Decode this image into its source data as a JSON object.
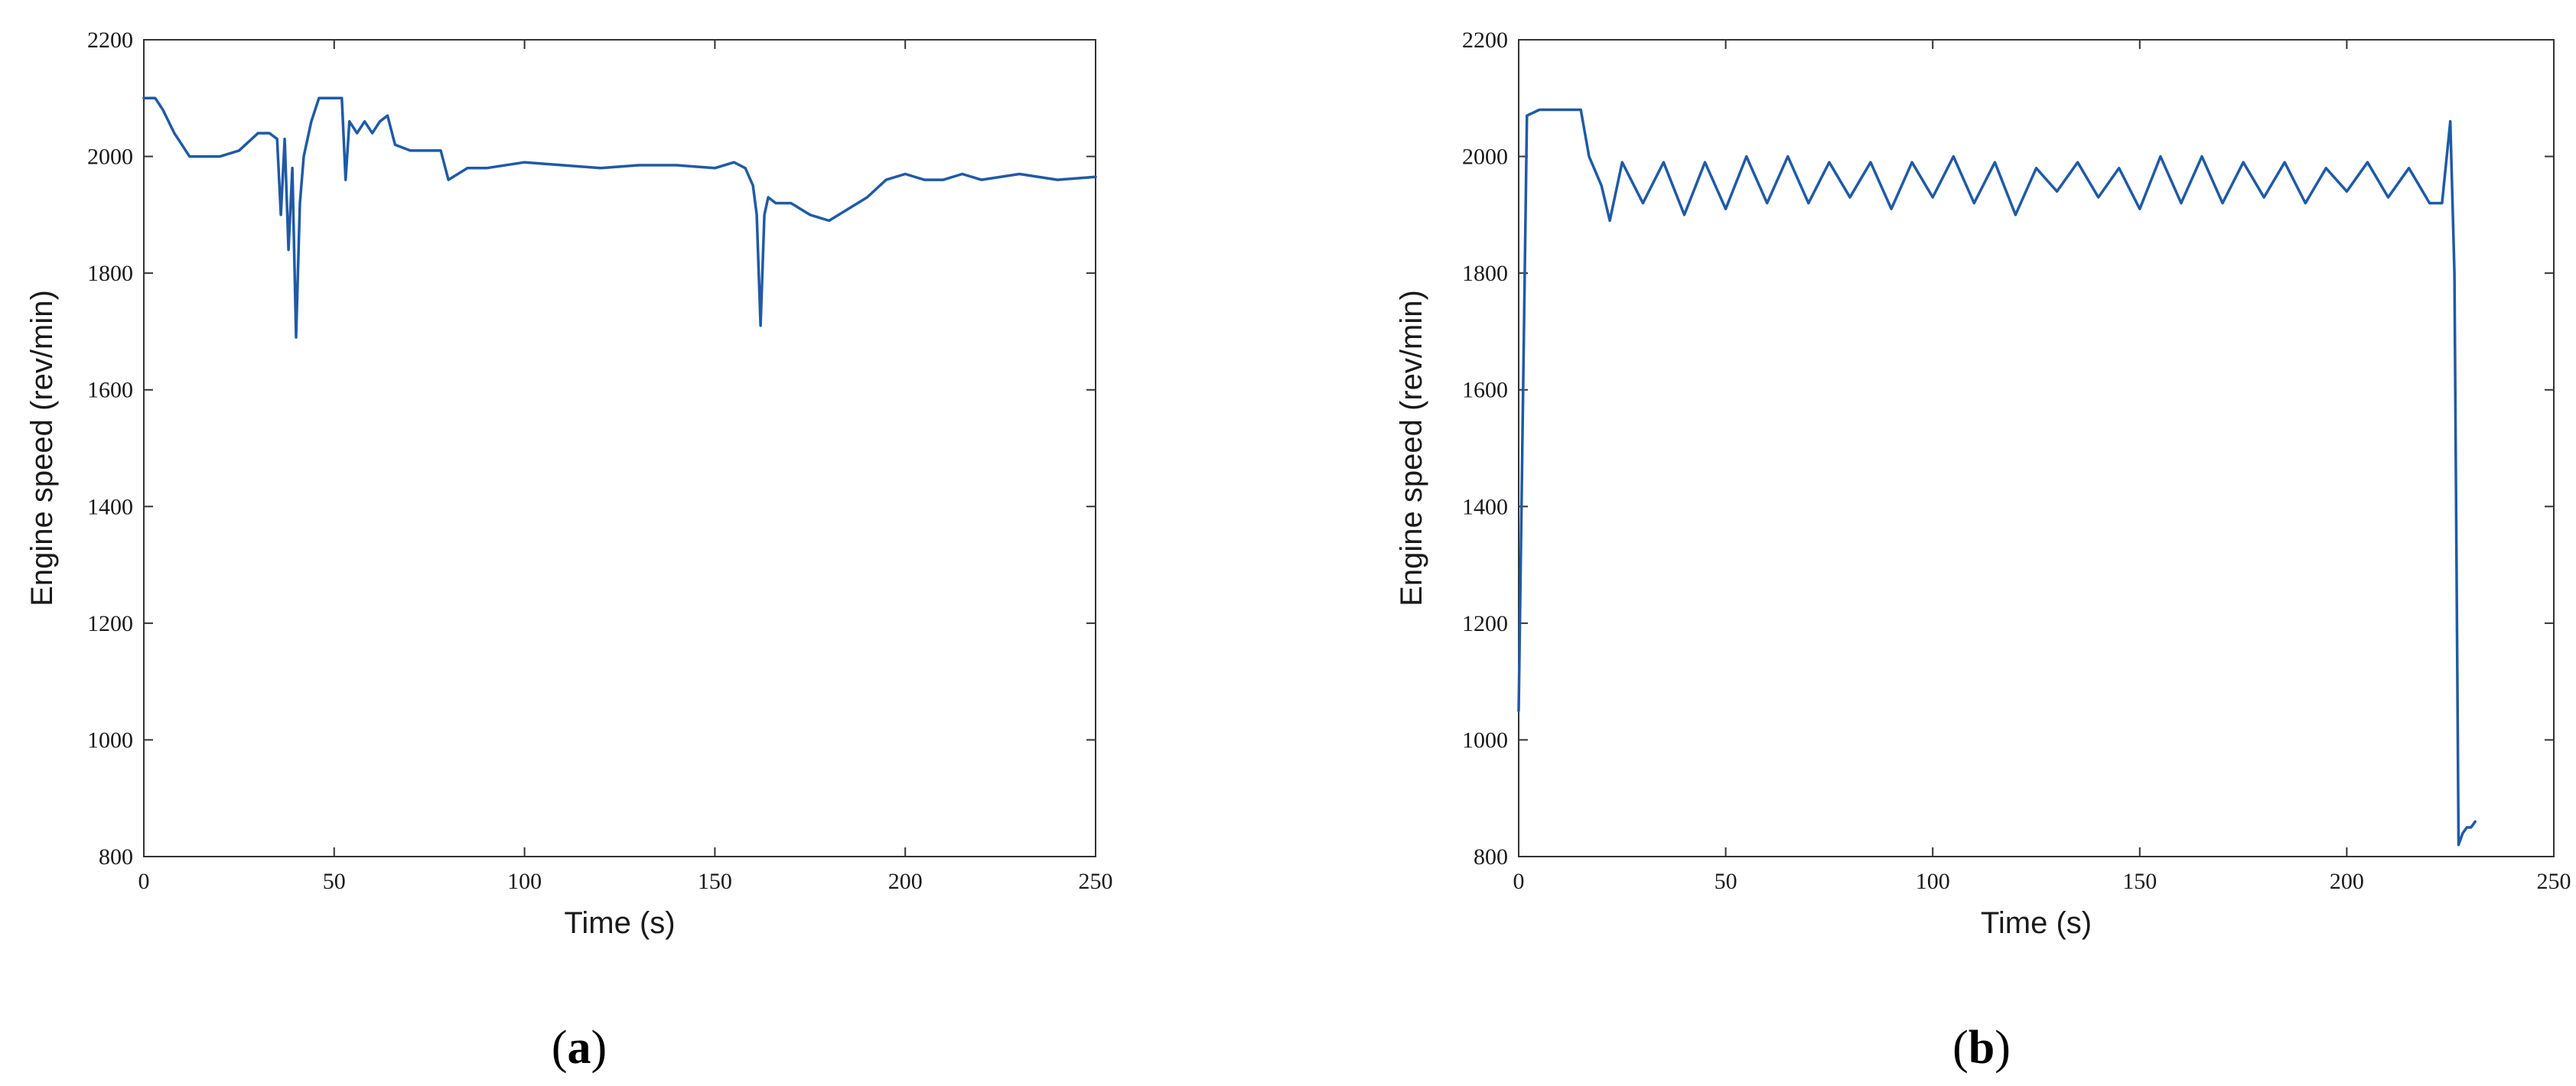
{
  "colors": {
    "line": "#1f5aa6",
    "axis": "#333333",
    "background": "#ffffff"
  },
  "chart_data": [
    {
      "type": "line",
      "panel_label": "a",
      "xlabel": "Time (s)",
      "ylabel": "Engine speed (rev/min)",
      "xlim": [
        0,
        250
      ],
      "ylim": [
        800,
        2200
      ],
      "xticks": [
        0,
        50,
        100,
        150,
        200,
        250
      ],
      "yticks": [
        800,
        1000,
        1200,
        1400,
        1600,
        1800,
        2000,
        2200
      ],
      "grid": false,
      "series": [
        {
          "x": [
            0,
            3,
            5,
            8,
            10,
            12,
            15,
            20,
            25,
            30,
            33,
            35,
            36,
            37,
            38,
            39,
            40,
            41,
            42,
            44,
            46,
            48,
            50,
            52,
            53,
            54,
            56,
            58,
            60,
            62,
            64,
            66,
            70,
            75,
            78,
            80,
            85,
            90,
            100,
            110,
            120,
            130,
            140,
            150,
            155,
            158,
            160,
            161,
            162,
            163,
            164,
            166,
            170,
            175,
            180,
            185,
            190,
            195,
            200,
            205,
            210,
            215,
            220,
            230,
            240,
            250
          ],
          "y": [
            2100,
            2100,
            2080,
            2040,
            2020,
            2000,
            2000,
            2000,
            2010,
            2040,
            2040,
            2030,
            1900,
            2030,
            1840,
            1980,
            1690,
            1920,
            2000,
            2060,
            2100,
            2100,
            2100,
            2100,
            1960,
            2060,
            2040,
            2060,
            2040,
            2060,
            2070,
            2020,
            2010,
            2010,
            2010,
            1960,
            1980,
            1980,
            1990,
            1985,
            1980,
            1985,
            1985,
            1980,
            1990,
            1980,
            1950,
            1900,
            1710,
            1900,
            1930,
            1920,
            1920,
            1900,
            1890,
            1910,
            1930,
            1960,
            1970,
            1960,
            1960,
            1970,
            1960,
            1970,
            1960,
            1965
          ]
        }
      ]
    },
    {
      "type": "line",
      "panel_label": "b",
      "xlabel": "Time (s)",
      "ylabel": "Engine speed (rev/min)",
      "xlim": [
        0,
        250
      ],
      "ylim": [
        800,
        2200
      ],
      "xticks": [
        0,
        50,
        100,
        150,
        200,
        250
      ],
      "yticks": [
        800,
        1000,
        1200,
        1400,
        1600,
        1800,
        2000,
        2200
      ],
      "grid": false,
      "series": [
        {
          "x": [
            0,
            2,
            5,
            10,
            15,
            17,
            20,
            22,
            25,
            30,
            35,
            40,
            45,
            50,
            55,
            60,
            65,
            70,
            75,
            80,
            85,
            90,
            95,
            100,
            105,
            110,
            115,
            120,
            125,
            130,
            135,
            140,
            145,
            150,
            155,
            160,
            165,
            170,
            175,
            180,
            185,
            190,
            195,
            200,
            205,
            210,
            215,
            220,
            223,
            225,
            226,
            227,
            228,
            229,
            230,
            231
          ],
          "y": [
            1050,
            2070,
            2080,
            2080,
            2080,
            2000,
            1950,
            1890,
            1990,
            1920,
            1990,
            1900,
            1990,
            1910,
            2000,
            1920,
            2000,
            1920,
            1990,
            1930,
            1990,
            1910,
            1990,
            1930,
            2000,
            1920,
            1990,
            1900,
            1980,
            1940,
            1990,
            1930,
            1980,
            1910,
            2000,
            1920,
            2000,
            1920,
            1990,
            1930,
            1990,
            1920,
            1980,
            1940,
            1990,
            1930,
            1980,
            1920,
            1920,
            2060,
            1800,
            820,
            840,
            850,
            850,
            860
          ]
        }
      ]
    }
  ]
}
